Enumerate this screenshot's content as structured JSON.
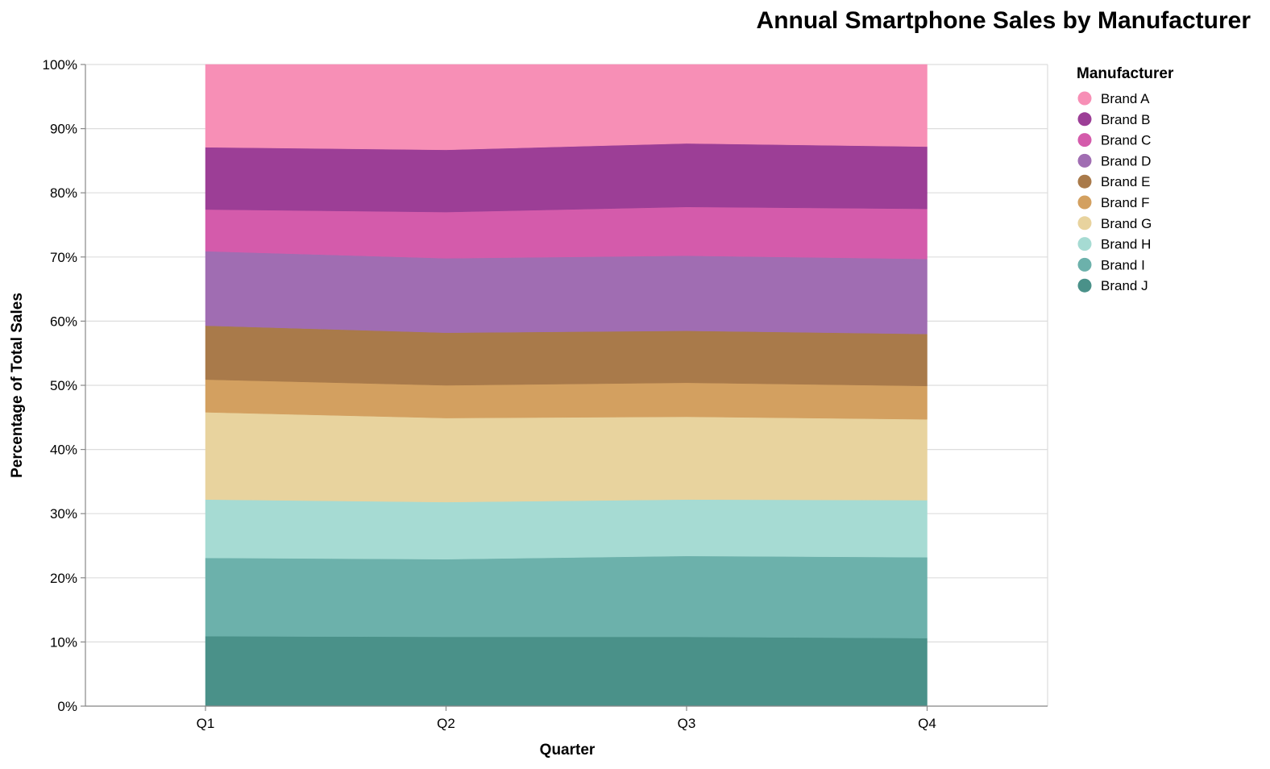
{
  "chart_data": {
    "type": "area",
    "stacked": true,
    "normalized": true,
    "title": "Annual Smartphone Sales by Manufacturer",
    "xlabel": "Quarter",
    "ylabel": "Percentage of Total Sales",
    "categories": [
      "Q1",
      "Q2",
      "Q3",
      "Q4"
    ],
    "ylim": [
      0,
      100
    ],
    "yticks": [
      "0%",
      "10%",
      "20%",
      "30%",
      "40%",
      "50%",
      "60%",
      "70%",
      "80%",
      "90%",
      "100%"
    ],
    "grid": "horizontal",
    "legend_title": "Manufacturer",
    "legend_position": "right",
    "series": [
      {
        "name": "Brand A",
        "color": "#f78fb6",
        "values": [
          12.9,
          13.3,
          12.3,
          12.8
        ]
      },
      {
        "name": "Brand B",
        "color": "#9c3e96",
        "values": [
          9.7,
          9.7,
          9.9,
          9.7
        ]
      },
      {
        "name": "Brand C",
        "color": "#d45bab",
        "values": [
          6.5,
          7.2,
          7.6,
          7.8
        ]
      },
      {
        "name": "Brand D",
        "color": "#a06db2",
        "values": [
          11.6,
          11.6,
          11.7,
          11.7
        ]
      },
      {
        "name": "Brand E",
        "color": "#a97a4a",
        "values": [
          8.4,
          8.2,
          8.1,
          8.1
        ]
      },
      {
        "name": "Brand F",
        "color": "#d3a060",
        "values": [
          5.1,
          5.1,
          5.3,
          5.2
        ]
      },
      {
        "name": "Brand G",
        "color": "#e8d39e",
        "values": [
          13.6,
          13.1,
          12.9,
          12.6
        ]
      },
      {
        "name": "Brand H",
        "color": "#a6dbd3",
        "values": [
          9.1,
          8.9,
          8.8,
          8.9
        ]
      },
      {
        "name": "Brand I",
        "color": "#6cb1ab",
        "values": [
          12.2,
          12.1,
          12.6,
          12.6
        ]
      },
      {
        "name": "Brand J",
        "color": "#4a9189",
        "values": [
          10.9,
          10.8,
          10.8,
          10.6
        ]
      }
    ]
  }
}
